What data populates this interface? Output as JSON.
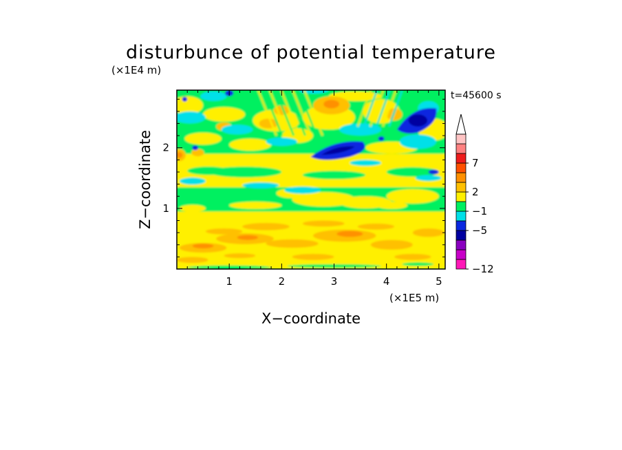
{
  "chart_data": {
    "type": "heatmap",
    "title": "disturbunce of potential temperature",
    "xlabel": "X−coordinate",
    "ylabel": "Z−coordinate",
    "x_unit_label": "(×1E5 m)",
    "y_unit_label": "(×1E4 m)",
    "time_label": "t=45600 s",
    "x_range": [
      0,
      5.12
    ],
    "y_range": [
      0,
      2.95
    ],
    "x_ticks": [
      1,
      2,
      3,
      4,
      5
    ],
    "y_ticks": [
      1,
      2
    ],
    "colorbar": {
      "labels": [
        "7",
        "2",
        "−1",
        "−5",
        "−12"
      ],
      "colors": [
        "#ff18b8",
        "#c800c8",
        "#8a00c0",
        "#0000a0",
        "#0a28e0",
        "#00e0e8",
        "#00f060",
        "#fff000",
        "#ffc000",
        "#ff9000",
        "#ff5000",
        "#ee1c1c",
        "#ff8080",
        "#ffc4c4"
      ],
      "arrow_top": true,
      "arrow_color": "#ffffff"
    },
    "bands": [
      {
        "z": [
          0.0,
          0.95
        ],
        "level": "yellow",
        "note": "lower layer, orange patches"
      },
      {
        "z": [
          0.95,
          1.35
        ],
        "level": "green"
      },
      {
        "z": [
          1.35,
          1.9
        ],
        "level": "yellow",
        "note": "cyan and green streaks"
      },
      {
        "z": [
          1.9,
          2.95
        ],
        "level": "mixed",
        "note": "alternating green, cyan, yellow, orange; blue cores near x=3.0 and x=4.5"
      }
    ],
    "features": [
      {
        "kind": "cold-core",
        "x": 3.05,
        "z": 1.97,
        "value": -5
      },
      {
        "kind": "cold-core",
        "x": 4.55,
        "z": 2.45,
        "value": -5
      },
      {
        "kind": "warm-core",
        "x": 2.95,
        "z": 2.7,
        "value": 2
      },
      {
        "kind": "warm-core",
        "x": 0.05,
        "z": 1.88,
        "value": 2
      }
    ]
  }
}
